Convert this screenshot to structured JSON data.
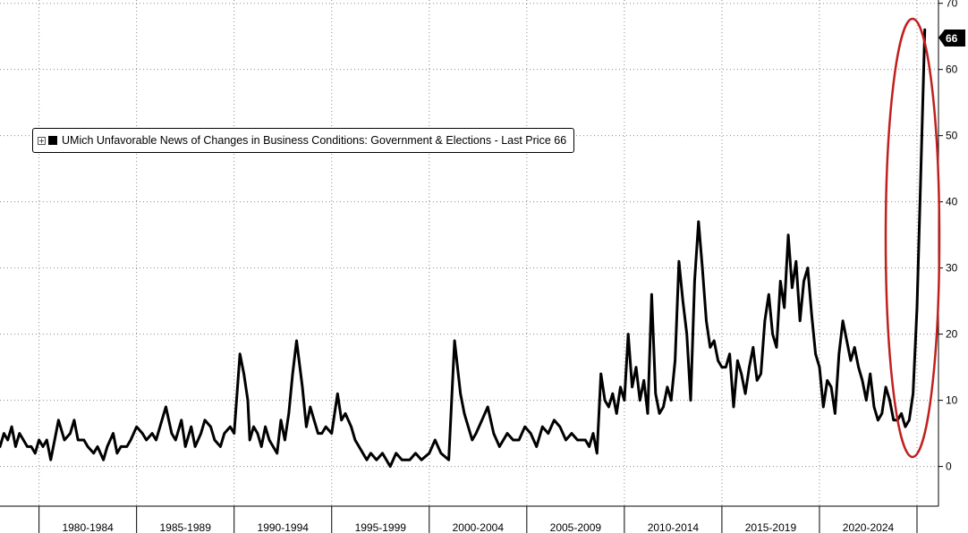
{
  "chart_data": {
    "type": "line",
    "legend": "UMich Unfavorable News of Changes in Business Conditions: Government & Elections - Last Price 66",
    "legend_position": "top-left",
    "last_value_label": "66",
    "line_color": "#000000",
    "highlight_color": "#c0201e",
    "xlabel": "",
    "ylabel": "",
    "ylim": [
      -6,
      70.5
    ],
    "xlim": [
      1978.0,
      2026.1
    ],
    "y_ticks": [
      0,
      10,
      20,
      30,
      40,
      50,
      60,
      70
    ],
    "y_tick_labels": [
      "0",
      "10",
      "20",
      "30",
      "40",
      "50",
      "60",
      "70"
    ],
    "x_bands": [
      {
        "label": "1980-1984",
        "start": 1980,
        "end": 1985
      },
      {
        "label": "1985-1989",
        "start": 1985,
        "end": 1990
      },
      {
        "label": "1990-1994",
        "start": 1990,
        "end": 1995
      },
      {
        "label": "1995-1999",
        "start": 1995,
        "end": 2000
      },
      {
        "label": "2000-2004",
        "start": 2000,
        "end": 2005
      },
      {
        "label": "2005-2009",
        "start": 2005,
        "end": 2010
      },
      {
        "label": "2010-2014",
        "start": 2010,
        "end": 2015
      },
      {
        "label": "2015-2019",
        "start": 2015,
        "end": 2020
      },
      {
        "label": "2020-2024",
        "start": 2020,
        "end": 2025
      }
    ],
    "grid": true,
    "x": [
      1978.0,
      1978.2,
      1978.4,
      1978.6,
      1978.8,
      1979.0,
      1979.2,
      1979.4,
      1979.6,
      1979.8,
      1980.0,
      1980.2,
      1980.4,
      1980.6,
      1980.8,
      1981.0,
      1981.3,
      1981.6,
      1981.8,
      1982.0,
      1982.3,
      1982.5,
      1982.8,
      1983.0,
      1983.3,
      1983.5,
      1983.8,
      1984.0,
      1984.2,
      1984.5,
      1984.7,
      1985.0,
      1985.3,
      1985.5,
      1985.8,
      1986.0,
      1986.3,
      1986.5,
      1986.8,
      1987.0,
      1987.3,
      1987.5,
      1987.8,
      1988.0,
      1988.3,
      1988.5,
      1988.8,
      1989.0,
      1989.3,
      1989.5,
      1989.8,
      1990.0,
      1990.3,
      1990.5,
      1990.7,
      1990.8,
      1991.0,
      1991.2,
      1991.4,
      1991.6,
      1991.8,
      1992.0,
      1992.2,
      1992.4,
      1992.6,
      1992.8,
      1993.0,
      1993.2,
      1993.5,
      1993.7,
      1993.9,
      1994.1,
      1994.3,
      1994.5,
      1994.7,
      1995.0,
      1995.3,
      1995.5,
      1995.7,
      1996.0,
      1996.2,
      1996.4,
      1996.6,
      1996.8,
      1997.0,
      1997.3,
      1997.6,
      1998.0,
      1998.3,
      1998.6,
      1999.0,
      1999.3,
      1999.6,
      2000.0,
      2000.3,
      2000.6,
      2001.0,
      2001.3,
      2001.6,
      2001.8,
      2002.0,
      2002.2,
      2002.4,
      2002.7,
      2003.0,
      2003.3,
      2003.6,
      2004.0,
      2004.3,
      2004.6,
      2004.9,
      2005.2,
      2005.5,
      2005.8,
      2006.1,
      2006.4,
      2006.7,
      2007.0,
      2007.3,
      2007.6,
      2008.0,
      2008.2,
      2008.4,
      2008.6,
      2008.8,
      2009.0,
      2009.2,
      2009.4,
      2009.6,
      2009.8,
      2010.0,
      2010.2,
      2010.4,
      2010.6,
      2010.8,
      2011.0,
      2011.2,
      2011.4,
      2011.6,
      2011.8,
      2012.0,
      2012.2,
      2012.4,
      2012.6,
      2012.8,
      2013.0,
      2013.2,
      2013.4,
      2013.6,
      2013.8,
      2014.0,
      2014.2,
      2014.4,
      2014.6,
      2014.8,
      2015.0,
      2015.2,
      2015.4,
      2015.6,
      2015.8,
      2016.0,
      2016.2,
      2016.4,
      2016.6,
      2016.8,
      2017.0,
      2017.2,
      2017.4,
      2017.6,
      2017.8,
      2018.0,
      2018.2,
      2018.4,
      2018.6,
      2018.8,
      2019.0,
      2019.2,
      2019.4,
      2019.6,
      2019.8,
      2020.0,
      2020.2,
      2020.4,
      2020.6,
      2020.8,
      2021.0,
      2021.2,
      2021.4,
      2021.6,
      2021.8,
      2022.0,
      2022.2,
      2022.4,
      2022.6,
      2022.8,
      2023.0,
      2023.2,
      2023.4,
      2023.6,
      2023.8,
      2024.0,
      2024.2,
      2024.4,
      2024.6,
      2024.8,
      2025.0,
      2025.2,
      2025.4
    ],
    "y": [
      3,
      5,
      4,
      6,
      3,
      5,
      4,
      3,
      3,
      2,
      4,
      3,
      4,
      1,
      4,
      7,
      4,
      5,
      7,
      4,
      4,
      3,
      2,
      3,
      1,
      3,
      5,
      2,
      3,
      3,
      4,
      6,
      5,
      4,
      5,
      4,
      7,
      9,
      5,
      4,
      7,
      3,
      6,
      3,
      5,
      7,
      6,
      4,
      3,
      5,
      6,
      5,
      17,
      14,
      10,
      4,
      6,
      5,
      3,
      6,
      4,
      3,
      2,
      7,
      4,
      8,
      14,
      19,
      12,
      6,
      9,
      7,
      5,
      5,
      6,
      5,
      11,
      7,
      8,
      6,
      4,
      3,
      2,
      1,
      2,
      1,
      2,
      0,
      2,
      1,
      1,
      2,
      1,
      2,
      4,
      2,
      1,
      19,
      11,
      8,
      6,
      4,
      5,
      7,
      9,
      5,
      3,
      5,
      4,
      4,
      6,
      5,
      3,
      6,
      5,
      7,
      6,
      4,
      5,
      4,
      4,
      3,
      5,
      2,
      14,
      10,
      9,
      11,
      8,
      12,
      10,
      20,
      12,
      15,
      10,
      13,
      8,
      26,
      11,
      8,
      9,
      12,
      10,
      16,
      31,
      25,
      20,
      10,
      28,
      37,
      30,
      22,
      18,
      19,
      16,
      15,
      15,
      17,
      9,
      16,
      14,
      11,
      15,
      18,
      13,
      14,
      22,
      26,
      20,
      18,
      28,
      24,
      35,
      27,
      31,
      22,
      28,
      30,
      23,
      17,
      15,
      9,
      13,
      12,
      8,
      17,
      22,
      19,
      16,
      18,
      15,
      13,
      10,
      14,
      9,
      7,
      8,
      12,
      10,
      7,
      7,
      8,
      6,
      7,
      11,
      24,
      45,
      66
    ]
  }
}
